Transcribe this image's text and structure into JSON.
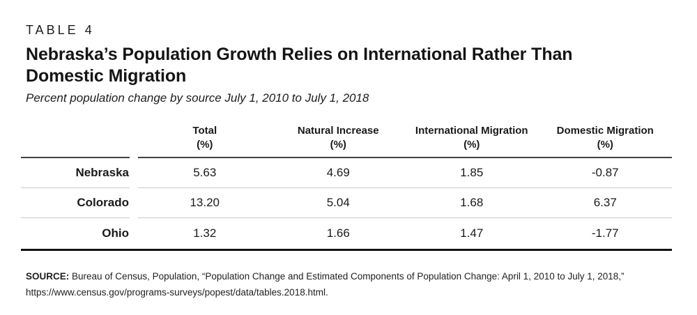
{
  "kicker": "TABLE 4",
  "title": "Nebraska’s Population Growth Relies on International Rather Than\nDomestic Migration",
  "subtitle": "Percent population change by source July 1, 2010 to July 1, 2018",
  "table": {
    "columns": [
      {
        "label": "Total",
        "unit": "(%)"
      },
      {
        "label": "Natural Increase",
        "unit": "(%)"
      },
      {
        "label": "International Migration",
        "unit": "(%)"
      },
      {
        "label": "Domestic Migration",
        "unit": "(%)"
      }
    ],
    "rows": [
      {
        "label": "Nebraska",
        "values": [
          "5.63",
          "4.69",
          "1.85",
          "-0.87"
        ]
      },
      {
        "label": "Colorado",
        "values": [
          "13.20",
          "5.04",
          "1.68",
          "6.37"
        ]
      },
      {
        "label": "Ohio",
        "values": [
          "1.32",
          "1.66",
          "1.47",
          "-1.77"
        ]
      }
    ]
  },
  "source": {
    "label": "SOURCE:",
    "text": " Bureau of Census, Population, “Population Change and Estimated Components of Population Change: April 1, 2010 to July 1, 2018,” https://www.census.gov/programs-surveys/popest/data/tables.2018.html."
  },
  "colors": {
    "text": "#1a1a1a",
    "header_rule": "#404040",
    "row_rule": "#c9c9c9",
    "bottom_rule": "#111111"
  },
  "chart_data": {
    "type": "table",
    "title": "Nebraska’s Population Growth Relies on International Rather Than Domestic Migration",
    "subtitle": "Percent population change by source July 1, 2010 to July 1, 2018",
    "columns": [
      "",
      "Total (%)",
      "Natural Increase (%)",
      "International Migration (%)",
      "Domestic Migration (%)"
    ],
    "rows": [
      [
        "Nebraska",
        5.63,
        4.69,
        1.85,
        -0.87
      ],
      [
        "Colorado",
        13.2,
        5.04,
        1.68,
        6.37
      ],
      [
        "Ohio",
        1.32,
        1.66,
        1.47,
        -1.77
      ]
    ]
  }
}
